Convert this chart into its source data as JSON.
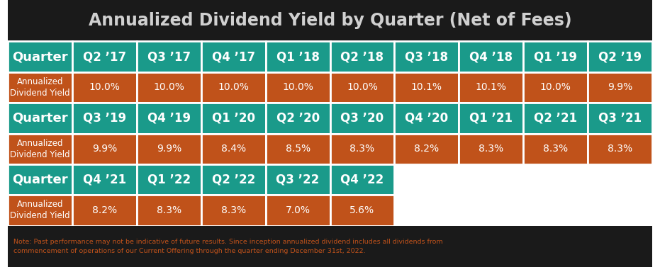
{
  "title": "Annualized Dividend Yield by Quarter (Net of Fees)",
  "teal_color": "#1a9a8a",
  "orange_color": "#c0521a",
  "white_color": "#ffffff",
  "bg_color": "#ffffff",
  "title_bg_color": "#1a1a1a",
  "note_bg": "#1a1a1a",
  "note_text_color": "#c0521a",
  "note_text": "Note: Past performance may not be indicative of future results. Since inception annualized dividend includes all dividends from\ncommencement of operations of our Current Offering through the quarter ending December 31st, 2022.",
  "row1_header": "Quarter",
  "row1_cols": [
    "Q2 ’17",
    "Q3 ’17",
    "Q4 ’17",
    "Q1 ’18",
    "Q2 ’18",
    "Q3 ’18",
    "Q4 ’18",
    "Q1 ’19",
    "Q2 ’19"
  ],
  "row2_label": "Annualized\nDividend Yield",
  "row2_vals": [
    "10.0%",
    "10.0%",
    "10.0%",
    "10.0%",
    "10.0%",
    "10.1%",
    "10.1%",
    "10.0%",
    "9.9%"
  ],
  "row3_header": "Quarter",
  "row3_cols": [
    "Q3 ’19",
    "Q4 ’19",
    "Q1 ’20",
    "Q2 ’20",
    "Q3 ’20",
    "Q4 ’20",
    "Q1 ’21",
    "Q2 ’21",
    "Q3 ’21"
  ],
  "row4_label": "Annualized\nDividend Yield",
  "row4_vals": [
    "9.9%",
    "9.9%",
    "8.4%",
    "8.5%",
    "8.3%",
    "8.2%",
    "8.3%",
    "8.3%",
    "8.3%"
  ],
  "row5_header": "Quarter",
  "row5_cols": [
    "Q4 ’21",
    "Q1 ’22",
    "Q2 ’22",
    "Q3 ’22",
    "Q4 ’22"
  ],
  "row6_label": "Annualized\nDividend Yield",
  "row6_vals": [
    "8.2%",
    "8.3%",
    "8.3%",
    "7.0%",
    "5.6%"
  ],
  "total_cols": 10,
  "title_fontsize": 17,
  "cell_fontsize": 9,
  "header_fontsize": 13,
  "note_fontsize": 6.8
}
